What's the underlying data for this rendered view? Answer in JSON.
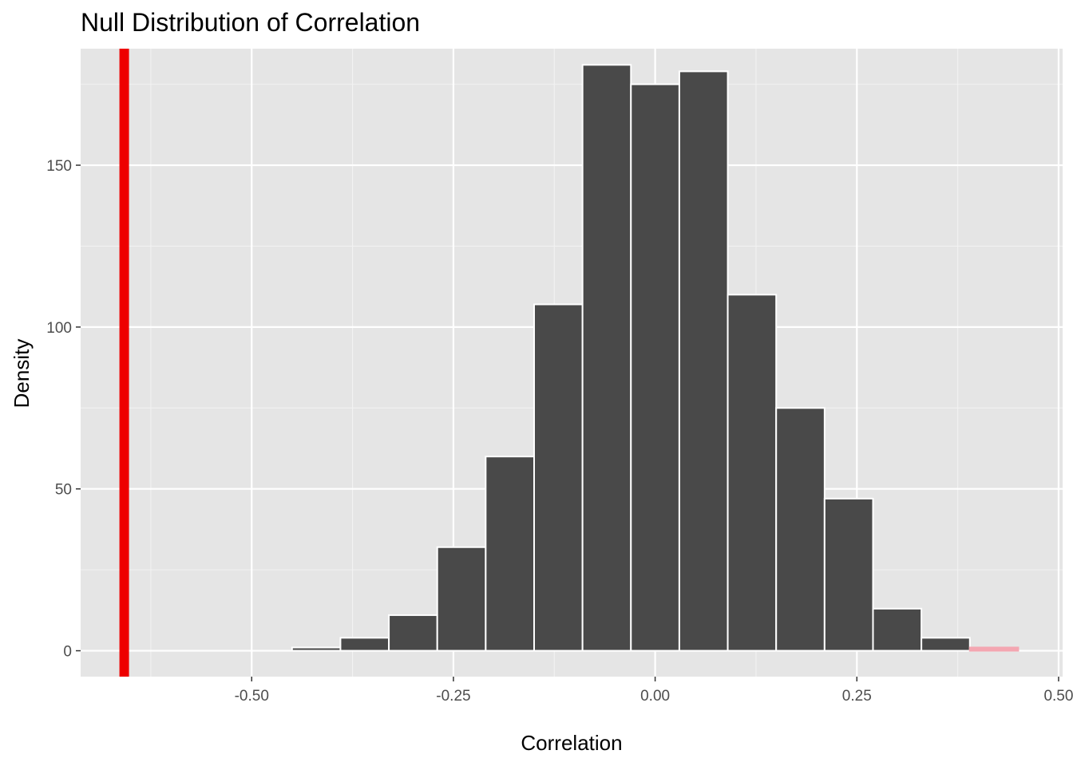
{
  "chart_data": {
    "type": "bar",
    "subtype": "histogram",
    "title": "Null Distribution of Correlation",
    "xlabel": "Correlation",
    "ylabel": "Density",
    "xlim": [
      -0.712,
      0.505
    ],
    "ylim": [
      -8,
      186
    ],
    "x_ticks": [
      -0.5,
      -0.25,
      0.0,
      0.25,
      0.5
    ],
    "x_tick_labels": [
      "-0.50",
      "-0.25",
      "0.00",
      "0.25",
      "0.50"
    ],
    "y_ticks": [
      0,
      50,
      100,
      150
    ],
    "y_tick_labels": [
      "0",
      "50",
      "100",
      "150"
    ],
    "grid": true,
    "background": "#e5e5e5",
    "bins": [
      {
        "x0": -0.45,
        "x1": -0.39,
        "value": 1,
        "shaded": false
      },
      {
        "x0": -0.39,
        "x1": -0.33,
        "value": 4,
        "shaded": false
      },
      {
        "x0": -0.33,
        "x1": -0.27,
        "value": 11,
        "shaded": false
      },
      {
        "x0": -0.27,
        "x1": -0.21,
        "value": 32,
        "shaded": false
      },
      {
        "x0": -0.21,
        "x1": -0.15,
        "value": 60,
        "shaded": false
      },
      {
        "x0": -0.15,
        "x1": -0.09,
        "value": 107,
        "shaded": false
      },
      {
        "x0": -0.09,
        "x1": -0.03,
        "value": 181,
        "shaded": false
      },
      {
        "x0": -0.03,
        "x1": 0.03,
        "value": 175,
        "shaded": false
      },
      {
        "x0": 0.03,
        "x1": 0.09,
        "value": 179,
        "shaded": false
      },
      {
        "x0": 0.09,
        "x1": 0.15,
        "value": 110,
        "shaded": false
      },
      {
        "x0": 0.15,
        "x1": 0.21,
        "value": 75,
        "shaded": false
      },
      {
        "x0": 0.21,
        "x1": 0.27,
        "value": 47,
        "shaded": false
      },
      {
        "x0": 0.27,
        "x1": 0.33,
        "value": 13,
        "shaded": false
      },
      {
        "x0": 0.33,
        "x1": 0.39,
        "value": 4,
        "shaded": false
      },
      {
        "x0": 0.39,
        "x1": 0.45,
        "value": 1,
        "shaded": true
      }
    ],
    "observed_statistic": -0.658,
    "colors": {
      "bar": "#494949",
      "bar_outline": "#ffffff",
      "shaded_bar": "#f4a6b1",
      "observed_line": "#ee0000",
      "grid_major": "#ffffff",
      "grid_minor": "#f2f2f2",
      "tick": "#333333"
    }
  }
}
